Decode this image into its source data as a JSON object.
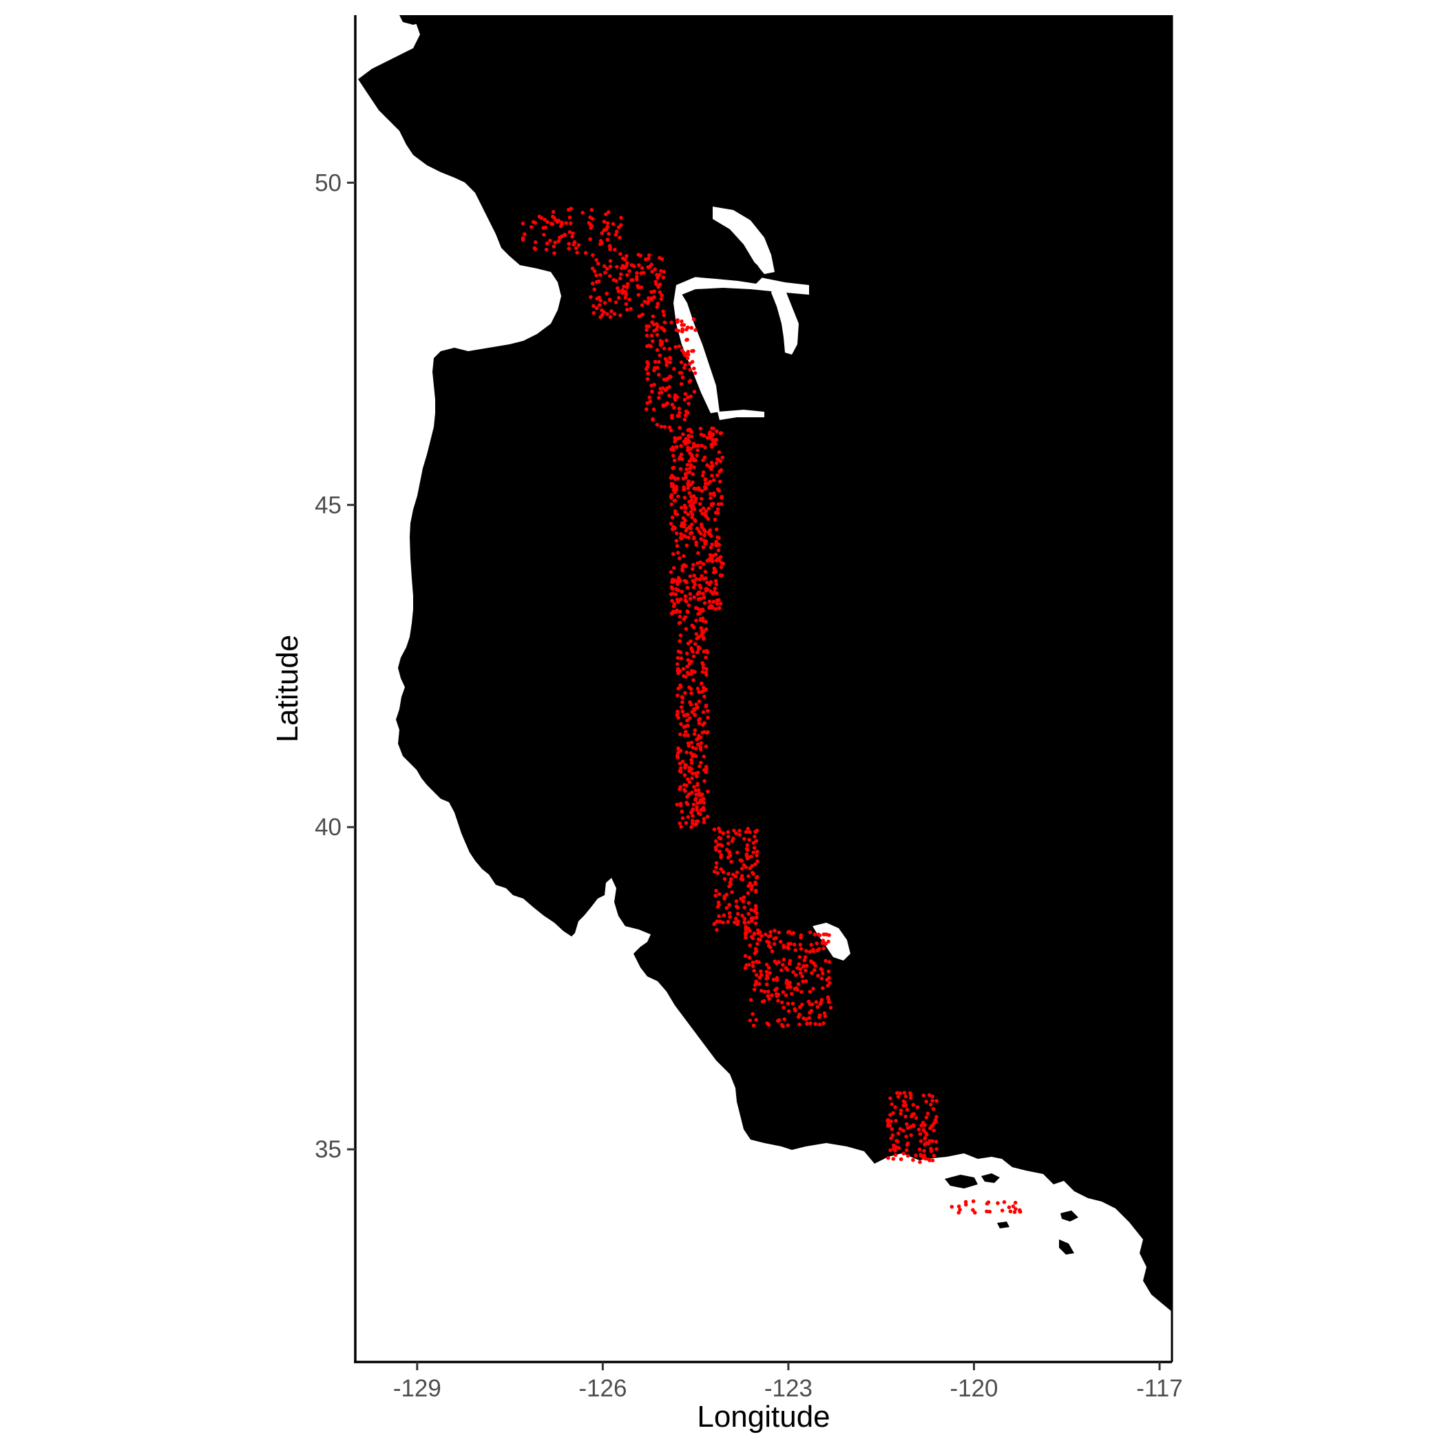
{
  "chart_data": {
    "type": "scatter",
    "xlabel": "Longitude",
    "ylabel": "Latitude",
    "xlim": [
      -130.0,
      -116.8
    ],
    "ylim": [
      31.7,
      52.6
    ],
    "x_ticks": [
      "-129",
      "-126",
      "-123",
      "-120",
      "-117"
    ],
    "x_tick_values": [
      -129,
      -126,
      -123,
      -120,
      -117
    ],
    "y_ticks": [
      "35",
      "40",
      "45",
      "50"
    ],
    "y_tick_values": [
      35,
      40,
      45,
      50
    ],
    "grid": false,
    "legend": "none",
    "land_color": "#000000",
    "point_color": "#ff0000",
    "point_clusters": [
      {
        "lon": [
          -127.3,
          -125.7
        ],
        "lat": [
          48.9,
          49.6
        ],
        "n": 90
      },
      {
        "lon": [
          -126.2,
          -125.0
        ],
        "lat": [
          47.9,
          48.9
        ],
        "n": 130
      },
      {
        "lon": [
          -125.3,
          -124.5
        ],
        "lat": [
          46.2,
          47.9
        ],
        "n": 150
      },
      {
        "lon": [
          -124.9,
          -124.05
        ],
        "lat": [
          43.3,
          46.2
        ],
        "n": 420
      },
      {
        "lon": [
          -124.8,
          -124.3
        ],
        "lat": [
          40.0,
          43.3
        ],
        "n": 260
      },
      {
        "lon": [
          -124.2,
          -123.5
        ],
        "lat": [
          38.4,
          40.0
        ],
        "n": 150
      },
      {
        "lon": [
          -123.7,
          -122.3
        ],
        "lat": [
          36.9,
          38.4
        ],
        "n": 230
      },
      {
        "lon": [
          -121.4,
          -120.6
        ],
        "lat": [
          34.8,
          35.9
        ],
        "n": 120
      },
      {
        "lon": [
          -120.4,
          -119.2
        ],
        "lat": [
          34.0,
          34.2
        ],
        "n": 25
      }
    ]
  }
}
